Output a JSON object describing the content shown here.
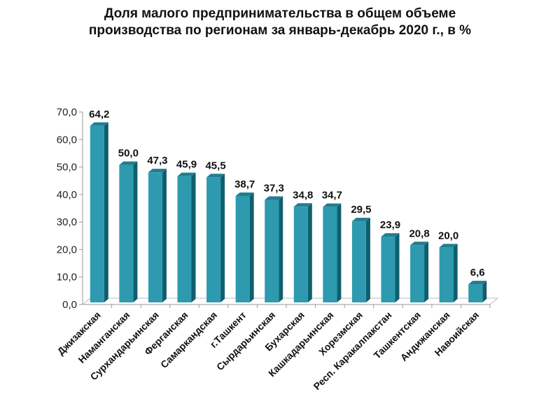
{
  "chart_data": {
    "type": "bar",
    "title_line1": "Доля малого предпринимательства в общем объеме",
    "title_line2": "производства по регионам за январь-декабрь 2020 г., в %",
    "categories": [
      "Джизакская",
      "Наманганская",
      "Сурхандарьинская",
      "Ферганская",
      "Самаркандская",
      "г.Ташкент",
      "Сырдарьинская",
      "Бухарская",
      "Кашкадарьинская",
      "Хорезмская",
      "Респ. Каракалпакстан",
      "Ташкентская",
      "Андижанская",
      "Навоийская"
    ],
    "values": [
      64.2,
      50.0,
      47.3,
      45.9,
      45.5,
      38.7,
      37.3,
      34.8,
      34.7,
      29.5,
      23.9,
      20.8,
      20.0,
      6.6
    ],
    "value_labels": [
      "64,2",
      "50,0",
      "47,3",
      "45,9",
      "45,5",
      "38,7",
      "37,3",
      "34,8",
      "34,7",
      "29,5",
      "23,9",
      "20,8",
      "20,0",
      "6,6"
    ],
    "yticks": [
      "0,0",
      "10,0",
      "20,0",
      "30,0",
      "40,0",
      "50,0",
      "60,0",
      "70,0"
    ],
    "ylim": [
      0,
      70
    ],
    "xlabel": "",
    "ylabel": "",
    "colors": {
      "front": "#2e9aaf",
      "side": "#0e5f6e",
      "top": "#237d8f"
    }
  }
}
